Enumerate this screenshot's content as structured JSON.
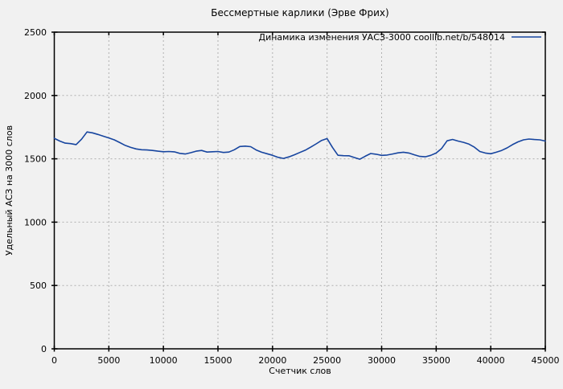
{
  "colors": {
    "background": "#f1f1f1",
    "plot_background": "#f1f1f1",
    "grid": "#b0b0b0",
    "axis": "#000000",
    "text": "#000000",
    "line": "#17459f"
  },
  "chart_data": {
    "type": "line",
    "title": "Бессмертные карлики (Эрве Фрих)",
    "xlabel": "Счетчик слов",
    "ylabel": "Удельный АСЗ на 3000 слов",
    "legend": "Динамика изменения УАСЗ-3000  coollib.net/b/548014",
    "legend_position": "top-right-inside",
    "grid": true,
    "xlim": [
      0,
      45000
    ],
    "ylim": [
      0,
      2500
    ],
    "x_ticks": [
      0,
      5000,
      10000,
      15000,
      20000,
      25000,
      30000,
      35000,
      40000,
      45000
    ],
    "y_ticks": [
      0,
      500,
      1000,
      1500,
      2000,
      2500
    ],
    "series": [
      {
        "name": "Динамика изменения УАСЗ-3000  coollib.net/b/548014",
        "color": "#17459f",
        "points": [
          [
            0,
            1662
          ],
          [
            500,
            1640
          ],
          [
            1000,
            1624
          ],
          [
            1500,
            1620
          ],
          [
            2000,
            1612
          ],
          [
            2500,
            1655
          ],
          [
            3000,
            1712
          ],
          [
            3500,
            1705
          ],
          [
            4000,
            1692
          ],
          [
            4500,
            1678
          ],
          [
            5000,
            1665
          ],
          [
            5500,
            1650
          ],
          [
            6000,
            1628
          ],
          [
            6500,
            1606
          ],
          [
            7000,
            1590
          ],
          [
            7500,
            1578
          ],
          [
            8000,
            1572
          ],
          [
            8500,
            1570
          ],
          [
            9000,
            1566
          ],
          [
            9500,
            1560
          ],
          [
            10000,
            1556
          ],
          [
            10500,
            1558
          ],
          [
            11000,
            1555
          ],
          [
            11500,
            1543
          ],
          [
            12000,
            1538
          ],
          [
            12500,
            1548
          ],
          [
            13000,
            1560
          ],
          [
            13500,
            1566
          ],
          [
            14000,
            1553
          ],
          [
            14500,
            1556
          ],
          [
            15000,
            1558
          ],
          [
            15500,
            1550
          ],
          [
            16000,
            1553
          ],
          [
            16500,
            1572
          ],
          [
            17000,
            1597
          ],
          [
            17500,
            1600
          ],
          [
            18000,
            1596
          ],
          [
            18500,
            1570
          ],
          [
            19000,
            1552
          ],
          [
            19500,
            1540
          ],
          [
            20000,
            1528
          ],
          [
            20500,
            1512
          ],
          [
            21000,
            1503
          ],
          [
            21500,
            1515
          ],
          [
            22000,
            1532
          ],
          [
            22500,
            1550
          ],
          [
            23000,
            1568
          ],
          [
            23500,
            1592
          ],
          [
            24000,
            1618
          ],
          [
            24500,
            1645
          ],
          [
            25000,
            1660
          ],
          [
            25500,
            1590
          ],
          [
            26000,
            1528
          ],
          [
            26500,
            1525
          ],
          [
            27000,
            1524
          ],
          [
            27500,
            1510
          ],
          [
            28000,
            1497
          ],
          [
            28500,
            1520
          ],
          [
            29000,
            1542
          ],
          [
            29500,
            1536
          ],
          [
            30000,
            1527
          ],
          [
            30500,
            1530
          ],
          [
            31000,
            1538
          ],
          [
            31500,
            1547
          ],
          [
            32000,
            1552
          ],
          [
            32500,
            1546
          ],
          [
            33000,
            1532
          ],
          [
            33500,
            1519
          ],
          [
            34000,
            1516
          ],
          [
            34500,
            1527
          ],
          [
            35000,
            1546
          ],
          [
            35500,
            1582
          ],
          [
            36000,
            1642
          ],
          [
            36500,
            1653
          ],
          [
            37000,
            1640
          ],
          [
            37500,
            1630
          ],
          [
            38000,
            1616
          ],
          [
            38500,
            1592
          ],
          [
            39000,
            1558
          ],
          [
            39500,
            1546
          ],
          [
            40000,
            1540
          ],
          [
            40500,
            1552
          ],
          [
            41000,
            1566
          ],
          [
            41500,
            1586
          ],
          [
            42000,
            1612
          ],
          [
            42500,
            1634
          ],
          [
            43000,
            1650
          ],
          [
            43500,
            1656
          ],
          [
            44000,
            1652
          ],
          [
            44500,
            1650
          ],
          [
            45000,
            1640
          ]
        ]
      }
    ]
  }
}
